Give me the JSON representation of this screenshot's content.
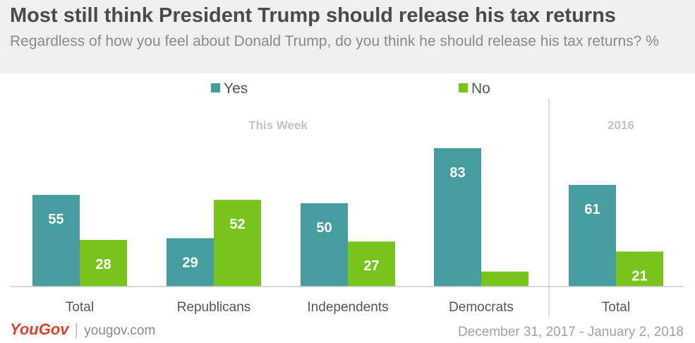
{
  "header": {
    "title": "Most still think President Trump should release his tax returns",
    "subtitle": "Regardless of how you feel about Donald Trump, do you think he should release his tax returns? %"
  },
  "footer": {
    "brand": "YouGov",
    "separator": "|",
    "url": "yougov.com",
    "date": "December 31, 2017 - January 2, 2018"
  },
  "colors": {
    "yes": "#469d9f",
    "no": "#78c41d",
    "group_label": "#c2c2c2",
    "axis": "#cccccc",
    "divider": "#d6d6d6"
  },
  "chart_data": {
    "type": "bar",
    "categories": [
      "Total",
      "Republicans",
      "Independents",
      "Democrats",
      "Total"
    ],
    "groups": [
      {
        "label": "This Week",
        "categories": [
          "Total",
          "Republicans",
          "Independents",
          "Democrats"
        ]
      },
      {
        "label": "2016",
        "categories": [
          "Total"
        ]
      }
    ],
    "series": [
      {
        "name": "Yes",
        "values": [
          55,
          29,
          50,
          83,
          61
        ]
      },
      {
        "name": "No",
        "values": [
          28,
          52,
          27,
          9,
          21
        ]
      }
    ],
    "data_labels": true,
    "ylim": [
      0,
      100
    ],
    "legend": "top-center",
    "grid": false
  }
}
